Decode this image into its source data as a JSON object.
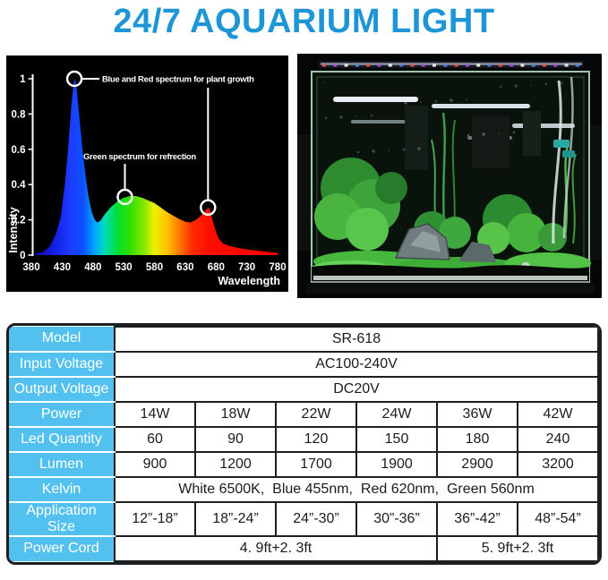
{
  "page": {
    "title": "24/7 AQUARIUM LIGHT"
  },
  "theme": {
    "accent": "#1E96D5",
    "table_header_bg": "#53C1F0",
    "table_header_text": "#FFFFFF",
    "table_border": "#1D1F21",
    "table_value_text": "#1C1C1C",
    "chart_bg": "#000000",
    "chart_text": "#FFFFFF"
  },
  "chart_data": {
    "type": "area",
    "title": "",
    "xlabel": "Wavelength",
    "ylabel": "Intensity",
    "xlim": [
      380,
      780
    ],
    "ylim": [
      0,
      1
    ],
    "x_ticks": [
      380,
      430,
      480,
      530,
      580,
      630,
      680,
      730,
      780
    ],
    "y_ticks": [
      0,
      0.2,
      0.4,
      0.6,
      0.8,
      1
    ],
    "grid": false,
    "background": "#000000",
    "series": [
      {
        "name": "led-spectrum",
        "points": [
          [
            380,
            0
          ],
          [
            390,
            0.01
          ],
          [
            400,
            0.02
          ],
          [
            410,
            0.05
          ],
          [
            420,
            0.12
          ],
          [
            428,
            0.22
          ],
          [
            435,
            0.42
          ],
          [
            440,
            0.62
          ],
          [
            445,
            0.85
          ],
          [
            449,
            0.98
          ],
          [
            451,
            1.0
          ],
          [
            454,
            0.93
          ],
          [
            458,
            0.78
          ],
          [
            463,
            0.6
          ],
          [
            468,
            0.45
          ],
          [
            473,
            0.33
          ],
          [
            478,
            0.245
          ],
          [
            483,
            0.2
          ],
          [
            487,
            0.185
          ],
          [
            492,
            0.195
          ],
          [
            500,
            0.235
          ],
          [
            510,
            0.275
          ],
          [
            520,
            0.305
          ],
          [
            530,
            0.325
          ],
          [
            540,
            0.335
          ],
          [
            550,
            0.335
          ],
          [
            560,
            0.325
          ],
          [
            570,
            0.31
          ],
          [
            580,
            0.295
          ],
          [
            590,
            0.27
          ],
          [
            600,
            0.245
          ],
          [
            610,
            0.225
          ],
          [
            620,
            0.205
          ],
          [
            630,
            0.19
          ],
          [
            638,
            0.185
          ],
          [
            645,
            0.195
          ],
          [
            653,
            0.215
          ],
          [
            660,
            0.24
          ],
          [
            665,
            0.26
          ],
          [
            668,
            0.27
          ],
          [
            671,
            0.245
          ],
          [
            675,
            0.19
          ],
          [
            680,
            0.13
          ],
          [
            685,
            0.09
          ],
          [
            692,
            0.065
          ],
          [
            700,
            0.055
          ],
          [
            710,
            0.045
          ],
          [
            725,
            0.035
          ],
          [
            740,
            0.028
          ],
          [
            760,
            0.02
          ],
          [
            780,
            0.012
          ]
        ]
      }
    ],
    "gradient_stops": [
      [
        0,
        "#12009A"
      ],
      [
        0.1,
        "#1422E8"
      ],
      [
        0.16,
        "#1E3CFF"
      ],
      [
        0.21,
        "#0A50FF"
      ],
      [
        0.26,
        "#00AAFF"
      ],
      [
        0.3,
        "#00DCB4"
      ],
      [
        0.35,
        "#00E132"
      ],
      [
        0.4,
        "#2FDF00"
      ],
      [
        0.46,
        "#8AE800"
      ],
      [
        0.5,
        "#EDF000"
      ],
      [
        0.55,
        "#FFC400"
      ],
      [
        0.6,
        "#FF7A00"
      ],
      [
        0.65,
        "#FF2E00"
      ],
      [
        0.72,
        "#FF0E00"
      ],
      [
        1,
        "#FF0000"
      ]
    ],
    "annotations": [
      {
        "text": "Blue and Red spectrum for plant growth",
        "points": [
          [
            450,
            1.0
          ],
          [
            667,
            0.27
          ]
        ]
      },
      {
        "text": "Green spectrum for refrection",
        "points": [
          [
            532,
            0.33
          ]
        ]
      }
    ]
  },
  "spec_table": {
    "rows": [
      {
        "label": "Model",
        "type": "full",
        "value": "SR-618"
      },
      {
        "label": "Input Voltage",
        "type": "full",
        "value": "AC100-240V"
      },
      {
        "label": "Output Voltage",
        "type": "full",
        "value": "DC20V"
      },
      {
        "label": "Power",
        "type": "cells",
        "values": [
          "14W",
          "18W",
          "22W",
          "24W",
          "36W",
          "42W"
        ]
      },
      {
        "label": "Led Quantity",
        "type": "cells",
        "values": [
          "60",
          "90",
          "120",
          "150",
          "180",
          "240"
        ]
      },
      {
        "label": "Lumen",
        "type": "cells",
        "values": [
          "900",
          "1200",
          "1700",
          "1900",
          "2900",
          "3200"
        ]
      },
      {
        "label": "Kelvin",
        "type": "full",
        "value": "White 6500K,  Blue 455nm,  Red 620nm,  Green 560nm"
      },
      {
        "label": "Application Size",
        "type": "cells",
        "values": [
          "12”-18”",
          "18”-24”",
          "24”-30”",
          "30”-36”",
          "36”-42”",
          "48”-54”"
        ]
      },
      {
        "label": "Power Cord",
        "type": "split",
        "values": [
          {
            "span": 4,
            "value": "4. 9ft+2. 3ft"
          },
          {
            "span": 2,
            "value": "5. 9ft+2. 3ft"
          }
        ]
      }
    ]
  }
}
